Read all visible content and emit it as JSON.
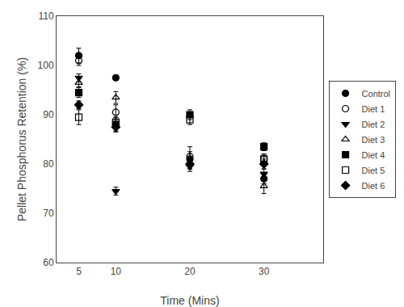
{
  "chart_data": {
    "type": "scatter",
    "xlabel": "Time (Mins)",
    "ylabel": "Pellet Phosphorus Retention (%)",
    "x": [
      5,
      10,
      20,
      30
    ],
    "xlim": [
      2,
      38
    ],
    "xticks": [
      5,
      10,
      20,
      30
    ],
    "ylim": [
      60,
      110
    ],
    "yticks": [
      60,
      70,
      80,
      90,
      100,
      110
    ],
    "grid": false,
    "legend": "right",
    "series": [
      {
        "name": "Control",
        "color": "black",
        "marker": "circle",
        "values": [
          102.0,
          97.5,
          81.0,
          77.0
        ],
        "yerr": [
          1.5,
          0.5,
          1.5,
          1.0
        ]
      },
      {
        "name": "Diet 1",
        "color": "black",
        "marker": "circle-open",
        "values": [
          101.0,
          90.5,
          81.5,
          81.0
        ],
        "yerr": [
          1.0,
          1.5,
          2.0,
          1.0
        ]
      },
      {
        "name": "Diet 2",
        "color": "black",
        "marker": "triangle-down",
        "values": [
          97.5,
          74.5,
          79.5,
          78.0
        ],
        "yerr": [
          0.8,
          0.8,
          1.0,
          1.0
        ]
      },
      {
        "name": "Diet 3",
        "color": "black",
        "marker": "triangle-up-open",
        "values": [
          96.5,
          93.5,
          80.0,
          75.5
        ],
        "yerr": [
          0.8,
          1.2,
          1.0,
          1.5
        ]
      },
      {
        "name": "Diet 4",
        "color": "black",
        "marker": "square",
        "values": [
          94.5,
          88.0,
          90.0,
          83.5
        ],
        "yerr": [
          1.0,
          1.5,
          1.0,
          0.8
        ]
      },
      {
        "name": "Diet 5",
        "color": "black",
        "marker": "square-open",
        "values": [
          89.5,
          88.5,
          89.0,
          81.0
        ],
        "yerr": [
          1.5,
          1.0,
          1.0,
          1.0
        ]
      },
      {
        "name": "Diet 6",
        "color": "black",
        "marker": "diamond",
        "values": [
          92.0,
          87.5,
          80.0,
          80.0
        ],
        "yerr": [
          0.8,
          0.8,
          1.0,
          1.0
        ]
      }
    ]
  }
}
